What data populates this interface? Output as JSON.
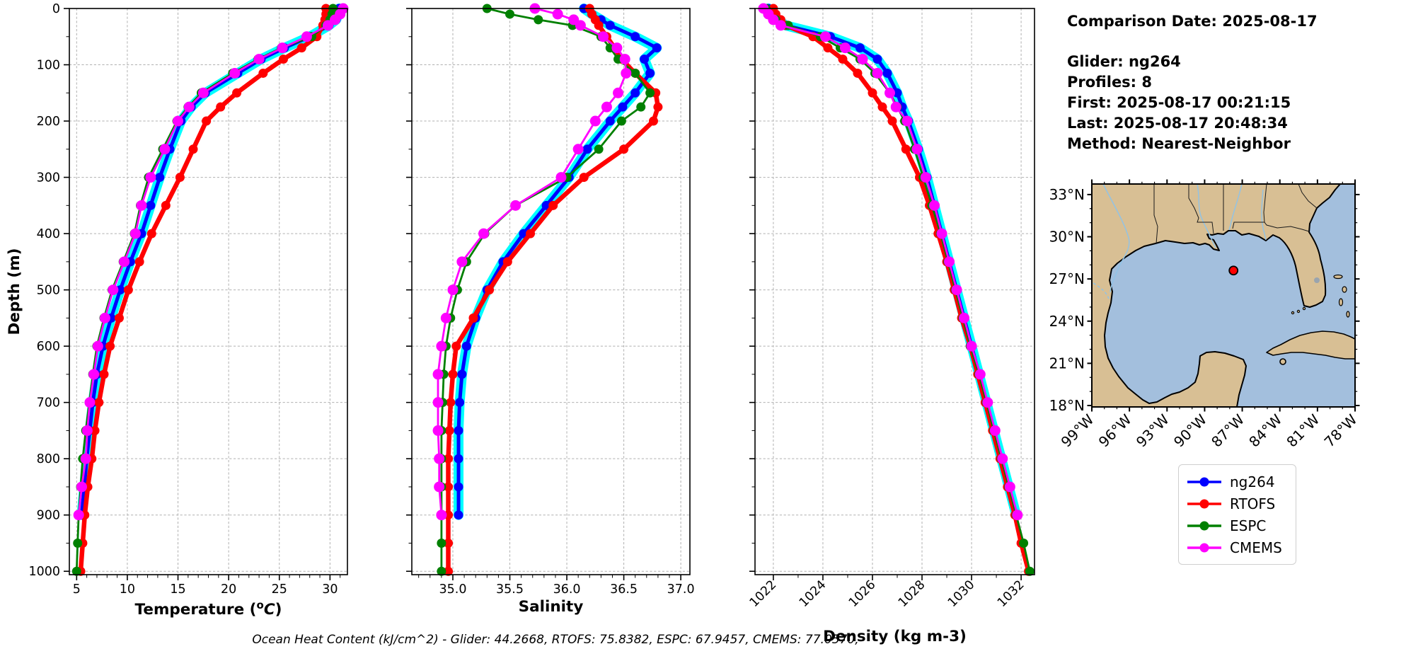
{
  "info_panel": {
    "comparison_date_label": "Comparison Date: 2025-08-17",
    "glider_label": "Glider: ng264",
    "profiles_label": "Profiles: 8",
    "first_label": "First: 2025-08-17 00:21:15",
    "last_label": "Last: 2025-08-17 20:48:34",
    "method_label": "Method: Nearest-Neighbor"
  },
  "footer": {
    "ohc_text": "Ocean Heat Content (kJ/cm^2) - Glider: 44.2668,  RTOFS: 75.8382,  ESPC: 67.9457,  CMEMS: 77.0570,"
  },
  "legend": {
    "entries": [
      {
        "label": "ng264",
        "color": "#0000ff"
      },
      {
        "label": "RTOFS",
        "color": "#ff0000"
      },
      {
        "label": "ESPC",
        "color": "#008000"
      },
      {
        "label": "CMEMS",
        "color": "#ff00ff"
      }
    ]
  },
  "chart_data": {
    "type": "line",
    "description": "Three depth-profile panels comparing glider ng264 against RTOFS, ESPC and CMEMS models",
    "ylabel": "Depth (m)",
    "ylim": [
      0,
      1006
    ],
    "yticks": [
      0,
      100,
      200,
      300,
      400,
      500,
      600,
      700,
      800,
      900,
      1000
    ],
    "y_minor_step": 50,
    "grid": true,
    "glider_spread_color": "#00ffff",
    "panels": [
      {
        "id": "temperature",
        "xlabel": "Temperature (°C)",
        "xlabel_parts": {
          "pre": "Temperature (",
          "sup": "o",
          "italic": "C",
          "post": ")"
        },
        "xlim": [
          4.28,
          31.72
        ],
        "xticks": [
          5,
          10,
          15,
          20,
          25,
          30
        ],
        "xtick_labels": [
          "5",
          "10",
          "15",
          "20",
          "25",
          "30"
        ],
        "minor_step": 1,
        "rotate_labels": false,
        "value_key": "temperature"
      },
      {
        "id": "salinity",
        "xlabel": "Salinity",
        "xlabel_parts": {
          "pre": "Salinity"
        },
        "xlim": [
          34.64,
          37.08
        ],
        "xticks": [
          35.0,
          35.5,
          36.0,
          36.5,
          37.0
        ],
        "xtick_labels": [
          "35.0",
          "35.5",
          "36.0",
          "36.5",
          "37.0"
        ],
        "minor_step": 0.1,
        "rotate_labels": false,
        "value_key": "salinity"
      },
      {
        "id": "density",
        "xlabel": "Density (kg m-3)",
        "xlabel_parts": {
          "pre": "Density (kg m-3)"
        },
        "xlim": [
          1021.26,
          1032.54
        ],
        "xticks": [
          1022,
          1024,
          1026,
          1028,
          1030,
          1032
        ],
        "xtick_labels": [
          "1022",
          "1024",
          "1026",
          "1028",
          "1030",
          "1032"
        ],
        "minor_step": 1,
        "rotate_labels": true,
        "value_key": "density"
      }
    ],
    "series": [
      {
        "name": "ng264",
        "color": "#0000ff",
        "halo": true,
        "lw": 5,
        "marker_r": 6.5,
        "depths": [
          0,
          10,
          20,
          30,
          50,
          70,
          90,
          115,
          150,
          175,
          200,
          250,
          300,
          350,
          400,
          450,
          500,
          550,
          600,
          650,
          700,
          750,
          800,
          850,
          900
        ],
        "temperature": [
          30.9,
          30.85,
          30.6,
          29.9,
          28.0,
          25.5,
          23.2,
          20.9,
          17.7,
          16.3,
          15.3,
          14.2,
          13.2,
          12.3,
          11.4,
          10.3,
          9.3,
          8.4,
          7.6,
          7.0,
          6.6,
          6.3,
          6.0,
          5.75,
          5.5
        ],
        "salinity": [
          36.15,
          36.22,
          36.3,
          36.38,
          36.6,
          36.79,
          36.68,
          36.73,
          36.6,
          36.49,
          36.38,
          36.18,
          36.02,
          35.82,
          35.62,
          35.44,
          35.3,
          35.2,
          35.12,
          35.08,
          35.06,
          35.05,
          35.05,
          35.05,
          35.05
        ],
        "density": [
          1021.8,
          1021.95,
          1022.15,
          1022.5,
          1024.3,
          1025.5,
          1026.2,
          1026.6,
          1027.0,
          1027.2,
          1027.45,
          1027.85,
          1028.2,
          1028.5,
          1028.8,
          1029.1,
          1029.4,
          1029.7,
          1030.0,
          1030.3,
          1030.6,
          1030.9,
          1031.2,
          1031.5,
          1031.8
        ]
      },
      {
        "name": "RTOFS",
        "color": "#ff0000",
        "halo": false,
        "lw": 6.5,
        "marker_r": 6.5,
        "depths": [
          0,
          10,
          20,
          30,
          50,
          70,
          90,
          115,
          150,
          175,
          200,
          250,
          300,
          350,
          400,
          450,
          500,
          550,
          600,
          650,
          700,
          750,
          800,
          850,
          900,
          950,
          1000
        ],
        "temperature": [
          29.6,
          29.6,
          29.5,
          29.3,
          28.7,
          27.2,
          25.4,
          23.4,
          20.8,
          19.2,
          17.8,
          16.5,
          15.2,
          13.8,
          12.4,
          11.2,
          10.1,
          9.2,
          8.3,
          7.7,
          7.2,
          6.8,
          6.5,
          6.1,
          5.8,
          5.6,
          5.4
        ],
        "salinity": [
          36.2,
          36.22,
          36.25,
          36.28,
          36.35,
          36.42,
          36.48,
          36.6,
          36.78,
          36.8,
          36.76,
          36.5,
          36.15,
          35.88,
          35.68,
          35.48,
          35.32,
          35.18,
          35.03,
          35.0,
          34.98,
          34.97,
          34.96,
          34.96,
          34.96,
          34.96,
          34.96
        ],
        "density": [
          1022.0,
          1022.1,
          1022.3,
          1022.5,
          1023.6,
          1024.2,
          1024.8,
          1025.4,
          1026.0,
          1026.4,
          1026.8,
          1027.35,
          1027.9,
          1028.3,
          1028.65,
          1029.0,
          1029.3,
          1029.6,
          1029.95,
          1030.25,
          1030.55,
          1030.85,
          1031.15,
          1031.45,
          1031.75,
          1032.0,
          1032.3
        ]
      },
      {
        "name": "ESPC",
        "color": "#008000",
        "halo": false,
        "lw": 2.8,
        "marker_r": 6.5,
        "depths": [
          0,
          10,
          20,
          30,
          50,
          70,
          90,
          115,
          150,
          175,
          200,
          250,
          300,
          350,
          400,
          450,
          500,
          550,
          600,
          650,
          700,
          750,
          800,
          850,
          900,
          950,
          1000
        ],
        "temperature": [
          30.3,
          30.2,
          30.0,
          29.6,
          28.2,
          25.2,
          22.9,
          20.4,
          17.3,
          16.0,
          14.9,
          13.5,
          12.1,
          11.3,
          10.7,
          9.6,
          8.5,
          7.7,
          7.0,
          6.6,
          6.25,
          5.9,
          5.6,
          5.4,
          5.2,
          5.1,
          5.0
        ],
        "salinity": [
          35.3,
          35.5,
          35.75,
          36.05,
          36.3,
          36.38,
          36.45,
          36.6,
          36.73,
          36.65,
          36.48,
          36.28,
          36.0,
          35.55,
          35.28,
          35.12,
          35.04,
          34.98,
          34.94,
          34.92,
          34.91,
          34.9,
          34.9,
          34.9,
          34.9,
          34.9,
          34.9
        ],
        "density": [
          1021.7,
          1021.8,
          1022.1,
          1022.6,
          1023.9,
          1024.7,
          1025.5,
          1026.1,
          1026.7,
          1027.0,
          1027.3,
          1027.7,
          1028.05,
          1028.4,
          1028.75,
          1029.05,
          1029.35,
          1029.65,
          1029.95,
          1030.3,
          1030.6,
          1030.9,
          1031.2,
          1031.5,
          1031.8,
          1032.1,
          1032.35
        ]
      },
      {
        "name": "CMEMS",
        "color": "#ff00ff",
        "halo": false,
        "lw": 2.8,
        "marker_r": 7.5,
        "depths": [
          0,
          10,
          20,
          30,
          50,
          70,
          90,
          115,
          150,
          175,
          200,
          250,
          300,
          350,
          400,
          450,
          500,
          550,
          600,
          650,
          700,
          750,
          800,
          850,
          900
        ],
        "temperature": [
          31.3,
          31.0,
          30.5,
          29.8,
          27.7,
          25.3,
          23.0,
          20.6,
          17.5,
          16.1,
          15.0,
          13.7,
          12.3,
          11.4,
          10.8,
          9.7,
          8.6,
          7.8,
          7.1,
          6.7,
          6.3,
          6.05,
          5.9,
          5.5,
          5.2
        ],
        "salinity": [
          35.72,
          35.92,
          36.06,
          36.12,
          36.32,
          36.44,
          36.51,
          36.52,
          36.45,
          36.35,
          36.25,
          36.1,
          35.95,
          35.55,
          35.27,
          35.08,
          35.0,
          34.94,
          34.9,
          34.87,
          34.87,
          34.87,
          34.88,
          34.88,
          34.9
        ],
        "density": [
          1021.6,
          1021.8,
          1022.0,
          1022.3,
          1024.1,
          1024.9,
          1025.6,
          1026.2,
          1026.7,
          1026.95,
          1027.4,
          1027.8,
          1028.15,
          1028.5,
          1028.8,
          1029.1,
          1029.4,
          1029.7,
          1030.0,
          1030.35,
          1030.65,
          1030.95,
          1031.25,
          1031.55,
          1031.85
        ]
      }
    ]
  },
  "map": {
    "region": "Gulf of Mexico",
    "lon_tick_labels": [
      "99°W",
      "96°W",
      "93°W",
      "90°W",
      "87°W",
      "84°W",
      "81°W",
      "78°W"
    ],
    "lat_tick_labels": [
      "33°N",
      "30°N",
      "27°N",
      "24°N",
      "21°N",
      "18°N"
    ],
    "lon_range_deg": [
      -99,
      -78
    ],
    "lat_range_deg": [
      17.9,
      33.75
    ],
    "land_color": "#d8bf94",
    "ocean_color": "#a3bfdd",
    "river_color": "#8fc3e8",
    "lake_color": "#9aa4ae",
    "marker": {
      "lat": 27.6,
      "lon": -87.7,
      "color": "#ff0000"
    }
  }
}
